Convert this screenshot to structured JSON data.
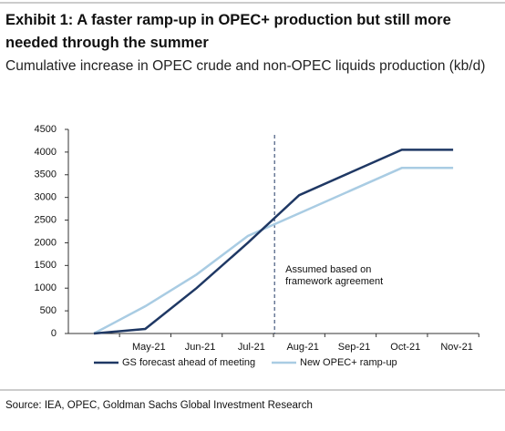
{
  "chart_data": {
    "type": "line",
    "title": "Exhibit 1: A faster ramp-up in OPEC+ production but still more needed through the summer",
    "subtitle": "Cumulative increase in OPEC crude and non-OPEC liquids production (kb/d)",
    "categories": [
      null,
      "May-21",
      "Jun-21",
      "Jul-21",
      "Aug-21",
      "Sep-21",
      "Oct-21",
      "Nov-21"
    ],
    "series": [
      {
        "name": "GS forecast ahead of meeting",
        "color": "#1f3864",
        "values": [
          0,
          100,
          1000,
          2000,
          3050,
          3550,
          4050,
          4050
        ]
      },
      {
        "name": "New OPEC+ ramp-up",
        "color": "#a9cce3",
        "values": [
          0,
          600,
          1300,
          2150,
          2650,
          3150,
          3650,
          3650
        ]
      }
    ],
    "ylim": [
      0,
      4500
    ],
    "yticks": [
      0,
      500,
      1000,
      1500,
      2000,
      2500,
      3000,
      3500,
      4000,
      4500
    ],
    "annotation": [
      "Assumed based on",
      "framework agreement"
    ],
    "source": "Source: IEA, OPEC, Goldman Sachs Global Investment Research"
  }
}
